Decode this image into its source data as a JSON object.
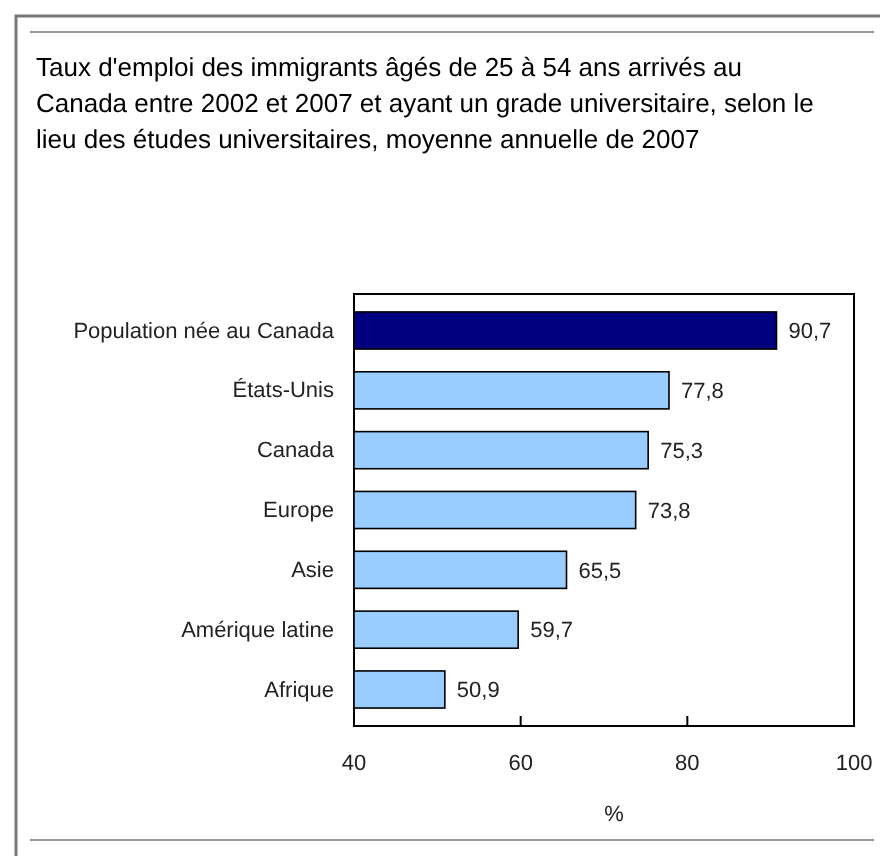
{
  "chart_data": {
    "type": "bar",
    "orientation": "horizontal",
    "title": "Taux d'emploi des immigrants âgés de 25 à 54 ans arrivés au Canada entre 2002 et 2007 et ayant un grade universitaire, selon le lieu des études universitaires, moyenne annuelle de 2007",
    "xlabel": "%",
    "categories": [
      "Population née au Canada",
      "États-Unis",
      "Canada",
      "Europe",
      "Asie",
      "Amérique latine",
      "Afrique"
    ],
    "values": [
      90.7,
      77.8,
      75.3,
      73.8,
      65.5,
      59.7,
      50.9
    ],
    "value_labels": [
      "90,7",
      "77,8",
      "75,3",
      "73,8",
      "65,5",
      "59,7",
      "50,9"
    ],
    "colors": [
      "#000080",
      "#99ccff",
      "#99ccff",
      "#99ccff",
      "#99ccff",
      "#99ccff",
      "#99ccff"
    ],
    "xlim": [
      40,
      100
    ],
    "xticks": [
      40,
      60,
      80,
      100
    ],
    "grid": false
  }
}
